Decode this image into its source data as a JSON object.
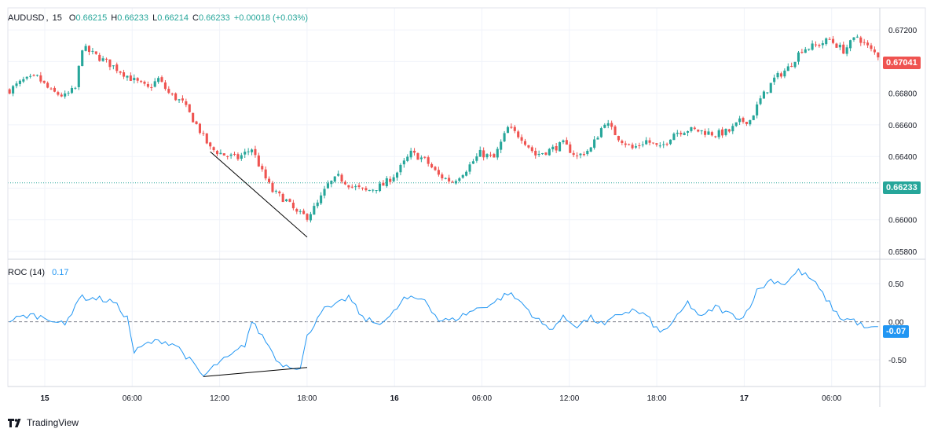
{
  "symbol_legend": {
    "symbol": "AUDUSD",
    "interval": "15",
    "open_label": "O",
    "open": "0.66215",
    "high_label": "H",
    "high": "0.66233",
    "low_label": "L",
    "low": "0.66214",
    "close_label": "C",
    "close": "0.66233",
    "change": "+0.00018 (+0.03%)"
  },
  "roc_legend": {
    "name": "ROC (14)",
    "value": "0.17"
  },
  "price_tags": {
    "last_price": "0.67041",
    "current_price": "0.66233",
    "roc_value": "-0.07"
  },
  "brand": "TradingView",
  "colors": {
    "up": "#26a69a",
    "down": "#ef5350",
    "roc_line": "#2196f3",
    "grid": "#f0f3fa",
    "axis_text": "#131722",
    "trendline": "#000000"
  },
  "chart_data": [
    {
      "type": "candlestick",
      "title": "AUDUSD, 15",
      "y_ticks": [
        "0.67200",
        "0.67000",
        "0.66800",
        "0.66600",
        "0.66400",
        "0.66200",
        "0.66000",
        "0.65800"
      ],
      "ylim": [
        0.6576,
        0.6734
      ],
      "x_ticks": [
        "15",
        "06:00",
        "12:00",
        "18:00",
        "16",
        "06:00",
        "12:00",
        "18:00",
        "17",
        "06:00"
      ],
      "close_path": [
        [
          0,
          0.6682
        ],
        [
          4,
          0.6688
        ],
        [
          8,
          0.669
        ],
        [
          12,
          0.6681
        ],
        [
          16,
          0.6678
        ],
        [
          19,
          0.6683
        ],
        [
          21,
          0.6709
        ],
        [
          24,
          0.6705
        ],
        [
          30,
          0.6697
        ],
        [
          36,
          0.6688
        ],
        [
          40,
          0.6683
        ],
        [
          43,
          0.6689
        ],
        [
          46,
          0.668
        ],
        [
          50,
          0.6674
        ],
        [
          54,
          0.666
        ],
        [
          58,
          0.6645
        ],
        [
          62,
          0.6641
        ],
        [
          66,
          0.6639
        ],
        [
          70,
          0.6645
        ],
        [
          73,
          0.663
        ],
        [
          76,
          0.6618
        ],
        [
          80,
          0.6612
        ],
        [
          83,
          0.6604
        ],
        [
          86,
          0.6602
        ],
        [
          89,
          0.661
        ],
        [
          92,
          0.6622
        ],
        [
          95,
          0.6627
        ],
        [
          99,
          0.6621
        ],
        [
          103,
          0.6618
        ],
        [
          108,
          0.6622
        ],
        [
          112,
          0.663
        ],
        [
          116,
          0.6642
        ],
        [
          120,
          0.6638
        ],
        [
          124,
          0.6628
        ],
        [
          128,
          0.6624
        ],
        [
          132,
          0.6632
        ],
        [
          136,
          0.6642
        ],
        [
          140,
          0.6639
        ],
        [
          144,
          0.6658
        ],
        [
          148,
          0.6652
        ],
        [
          152,
          0.6641
        ],
        [
          156,
          0.6644
        ],
        [
          160,
          0.6648
        ],
        [
          164,
          0.664
        ],
        [
          168,
          0.6645
        ],
        [
          172,
          0.6662
        ],
        [
          176,
          0.6652
        ],
        [
          180,
          0.6645
        ],
        [
          184,
          0.665
        ],
        [
          188,
          0.6645
        ],
        [
          192,
          0.6655
        ],
        [
          196,
          0.6657
        ],
        [
          200,
          0.6656
        ],
        [
          204,
          0.6654
        ],
        [
          208,
          0.6656
        ],
        [
          211,
          0.6662
        ],
        [
          214,
          0.6663
        ],
        [
          217,
          0.6676
        ],
        [
          221,
          0.6689
        ],
        [
          225,
          0.6696
        ],
        [
          229,
          0.6708
        ],
        [
          233,
          0.671
        ],
        [
          237,
          0.6714
        ],
        [
          241,
          0.6707
        ],
        [
          245,
          0.6716
        ],
        [
          249,
          0.6707
        ],
        [
          251,
          0.6704
        ]
      ],
      "candle_count": 252,
      "trendline": {
        "from": [
          58,
          0.6643
        ],
        "to": [
          86,
          0.6589
        ]
      }
    },
    {
      "type": "line",
      "title": "ROC (14)",
      "y_ticks": [
        "0.50",
        "0.00",
        "-0.50"
      ],
      "ylim": [
        -0.85,
        0.8
      ],
      "zero_line": 0,
      "path": [
        [
          0,
          0.02
        ],
        [
          6,
          0.09
        ],
        [
          12,
          0.04
        ],
        [
          16,
          -0.05
        ],
        [
          20,
          0.32
        ],
        [
          26,
          0.3
        ],
        [
          30,
          0.26
        ],
        [
          34,
          0.05
        ],
        [
          36,
          -0.4
        ],
        [
          40,
          -0.28
        ],
        [
          44,
          -0.25
        ],
        [
          48,
          -0.3
        ],
        [
          52,
          -0.5
        ],
        [
          56,
          -0.72
        ],
        [
          60,
          -0.55
        ],
        [
          64,
          -0.45
        ],
        [
          68,
          -0.3
        ],
        [
          70,
          0.0
        ],
        [
          74,
          -0.25
        ],
        [
          78,
          -0.55
        ],
        [
          82,
          -0.58
        ],
        [
          84,
          -0.62
        ],
        [
          86,
          -0.2
        ],
        [
          90,
          0.15
        ],
        [
          94,
          0.2
        ],
        [
          98,
          0.33
        ],
        [
          102,
          0.05
        ],
        [
          106,
          -0.02
        ],
        [
          110,
          0.06
        ],
        [
          114,
          0.3
        ],
        [
          120,
          0.3
        ],
        [
          124,
          0.02
        ],
        [
          128,
          0.02
        ],
        [
          134,
          0.15
        ],
        [
          140,
          0.25
        ],
        [
          144,
          0.38
        ],
        [
          148,
          0.25
        ],
        [
          152,
          0.05
        ],
        [
          156,
          -0.1
        ],
        [
          160,
          0.05
        ],
        [
          164,
          -0.05
        ],
        [
          168,
          0.05
        ],
        [
          172,
          -0.05
        ],
        [
          176,
          0.1
        ],
        [
          180,
          0.15
        ],
        [
          184,
          0.08
        ],
        [
          188,
          -0.15
        ],
        [
          192,
          0.0
        ],
        [
          196,
          0.25
        ],
        [
          200,
          0.05
        ],
        [
          204,
          0.2
        ],
        [
          208,
          0.1
        ],
        [
          212,
          0.05
        ],
        [
          216,
          0.4
        ],
        [
          220,
          0.55
        ],
        [
          224,
          0.5
        ],
        [
          228,
          0.67
        ],
        [
          232,
          0.55
        ],
        [
          236,
          0.3
        ],
        [
          240,
          0.05
        ],
        [
          244,
          0.02
        ],
        [
          248,
          -0.1
        ],
        [
          251,
          -0.07
        ]
      ],
      "trendline": {
        "from": [
          56,
          -0.72
        ],
        "to": [
          86,
          -0.6
        ]
      }
    }
  ]
}
